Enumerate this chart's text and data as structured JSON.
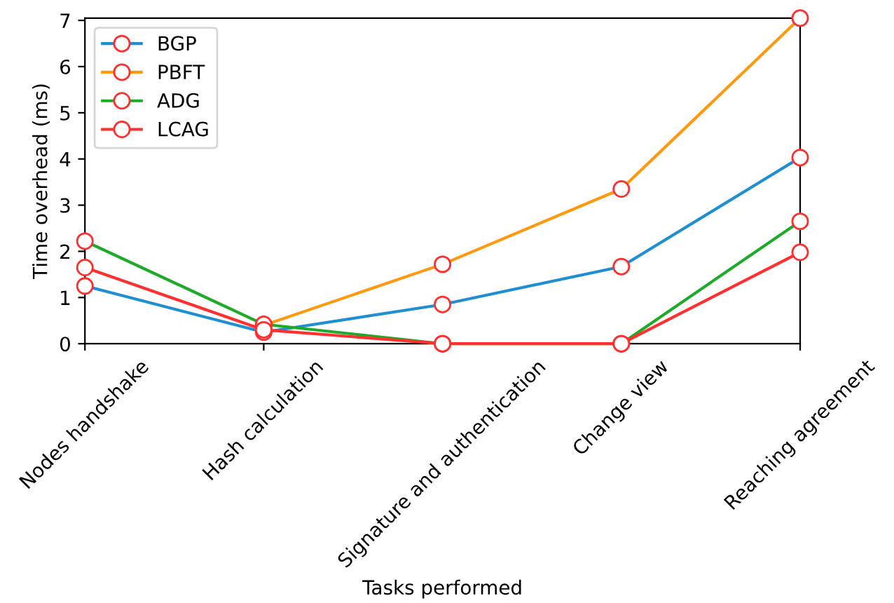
{
  "chart_data": {
    "type": "line",
    "xlabel": "Tasks performed",
    "ylabel": "Time overhead (ms)",
    "categories": [
      "Nodes handshake",
      "Hash calculation",
      "Signature and authentication",
      "Change view",
      "Reaching agreement"
    ],
    "series": [
      {
        "name": "BGP",
        "color": "#1f8fd0",
        "values": [
          1.25,
          0.25,
          0.85,
          1.67,
          4.03
        ]
      },
      {
        "name": "PBFT",
        "color": "#ff9a10",
        "values": [
          null,
          0.4,
          1.72,
          3.35,
          7.05
        ]
      },
      {
        "name": "ADG",
        "color": "#1faa2a",
        "values": [
          2.22,
          0.42,
          0,
          0,
          2.65
        ]
      },
      {
        "name": "LCAG",
        "color": "#ff3030",
        "values": [
          1.65,
          0.3,
          0,
          0,
          1.98
        ]
      }
    ],
    "ylim": [
      0,
      7.05
    ],
    "yticks": [
      0,
      1,
      2,
      3,
      4,
      5,
      6,
      7
    ],
    "grid": false,
    "legend": "top left",
    "marker": "circle",
    "line_style": "solid"
  }
}
